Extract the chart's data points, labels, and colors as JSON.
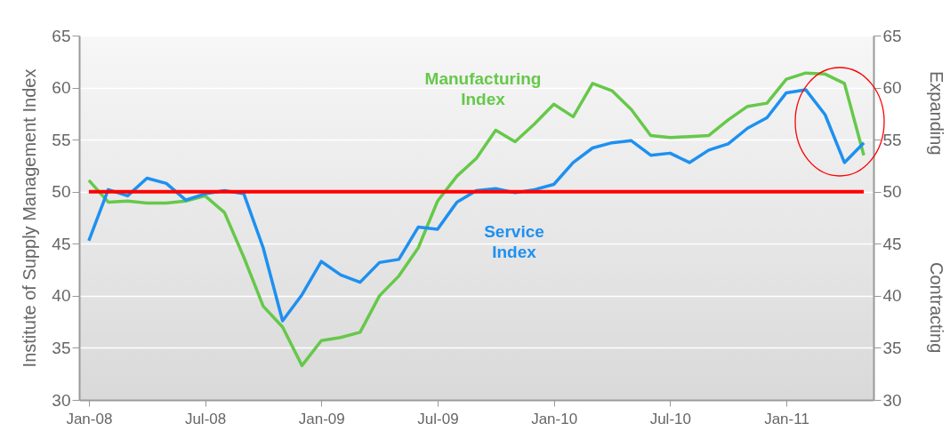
{
  "chart_data": {
    "type": "line",
    "ylabel": "Institute of Supply Management Index",
    "categories": [
      "Jan-08",
      null,
      null,
      null,
      null,
      null,
      "Jul-08",
      null,
      null,
      null,
      null,
      null,
      "Jan-09",
      null,
      null,
      null,
      null,
      null,
      "Jul-09",
      null,
      null,
      null,
      null,
      null,
      "Jan-10",
      null,
      null,
      null,
      null,
      null,
      "Jul-10",
      null,
      null,
      null,
      null,
      null,
      "Jan-11",
      null,
      null,
      null,
      null
    ],
    "series": [
      {
        "name": "Manufacturing Index",
        "color": "#66c84a",
        "values": [
          51.1,
          49.0,
          49.1,
          48.9,
          48.9,
          49.1,
          49.6,
          48.0,
          43.7,
          39.0,
          37.0,
          33.3,
          35.7,
          36.0,
          36.5,
          40.0,
          41.9,
          44.6,
          49.1,
          51.5,
          53.2,
          55.9,
          54.8,
          56.5,
          58.4,
          57.2,
          60.4,
          59.7,
          57.9,
          55.4,
          55.2,
          55.3,
          55.4,
          56.9,
          58.2,
          58.5,
          60.8,
          61.4,
          61.3,
          60.4,
          53.5
        ]
      },
      {
        "name": "Service Index",
        "color": "#1e90f0",
        "values": [
          45.3,
          50.2,
          49.6,
          51.3,
          50.8,
          49.2,
          49.8,
          50.1,
          49.8,
          44.6,
          37.6,
          40.1,
          43.3,
          42.0,
          41.3,
          43.2,
          43.5,
          46.6,
          46.4,
          49.0,
          50.1,
          50.3,
          49.9,
          50.2,
          50.7,
          52.8,
          54.2,
          54.7,
          54.9,
          53.5,
          53.7,
          52.8,
          54.0,
          54.6,
          56.1,
          57.1,
          59.5,
          59.8,
          57.4,
          52.8,
          54.7
        ]
      }
    ],
    "ylim": [
      30,
      65
    ],
    "yticks": [
      30,
      35,
      40,
      45,
      50,
      55,
      60,
      65
    ],
    "y2lim": [
      30,
      65
    ],
    "y2ticks": [
      30,
      35,
      40,
      45,
      50,
      55,
      60,
      65
    ],
    "ref_lines": [
      {
        "axis": "y",
        "value": 50,
        "color": "#ff0000"
      }
    ],
    "annotations": [
      "Expanding",
      "Contracting"
    ],
    "grid": "y",
    "marker": "none",
    "line_style": "solid"
  }
}
